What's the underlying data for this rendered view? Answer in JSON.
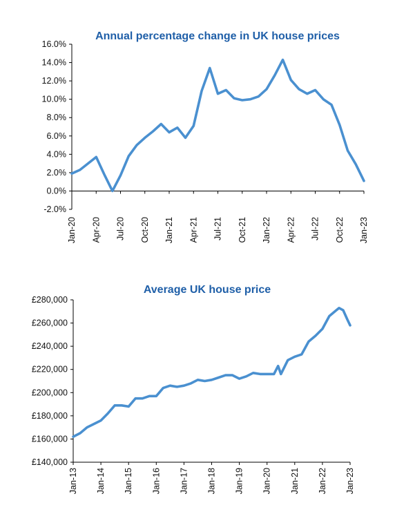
{
  "chart_data": [
    {
      "type": "line",
      "title": "Annual percentage change in UK house prices",
      "xlabel": "",
      "ylabel": "",
      "ylim": [
        -2,
        16
      ],
      "y_ticks": [
        "16.0%",
        "14.0%",
        "12.0%",
        "10.0%",
        "8.0%",
        "6.0%",
        "4.0%",
        "2.0%",
        "0.0%",
        "-2.0%"
      ],
      "x_ticks": [
        "Jan-20",
        "Apr-20",
        "Jul-20",
        "Oct-20",
        "Jan-21",
        "Apr-21",
        "Jul-21",
        "Oct-21",
        "Jan-22",
        "Apr-22",
        "Jul-22",
        "Oct-22",
        "Jan-23"
      ],
      "grid": false,
      "series": [
        {
          "color": "#4a90d0",
          "x": [
            "Jan-20",
            "Feb-20",
            "Mar-20",
            "Apr-20",
            "May-20",
            "Jun-20",
            "Jul-20",
            "Aug-20",
            "Sep-20",
            "Oct-20",
            "Nov-20",
            "Dec-20",
            "Jan-21",
            "Feb-21",
            "Mar-21",
            "Apr-21",
            "May-21",
            "Jun-21",
            "Jul-21",
            "Aug-21",
            "Sep-21",
            "Oct-21",
            "Nov-21",
            "Dec-21",
            "Jan-22",
            "Feb-22",
            "Mar-22",
            "Apr-22",
            "May-22",
            "Jun-22",
            "Jul-22",
            "Aug-22",
            "Sep-22",
            "Oct-22",
            "Nov-22",
            "Dec-22",
            "Jan-23"
          ],
          "values": [
            1.9,
            2.3,
            3.0,
            3.7,
            1.8,
            0.0,
            1.7,
            3.8,
            5.0,
            5.8,
            6.5,
            7.3,
            6.4,
            6.9,
            5.8,
            7.1,
            10.9,
            13.4,
            10.6,
            11.0,
            10.1,
            9.9,
            10.0,
            10.3,
            11.1,
            12.6,
            14.3,
            12.1,
            11.1,
            10.6,
            11.0,
            10.0,
            9.4,
            7.2,
            4.4,
            2.9,
            1.1
          ]
        }
      ]
    },
    {
      "type": "line",
      "title": "Average UK house price",
      "xlabel": "",
      "ylabel": "",
      "ylim": [
        140000,
        280000
      ],
      "y_ticks": [
        "£280,000",
        "£260,000",
        "£240,000",
        "£220,000",
        "£200,000",
        "£180,000",
        "£160,000",
        "£140,000"
      ],
      "x_ticks": [
        "Jan-13",
        "Jan-14",
        "Jan-15",
        "Jan-16",
        "Jan-17",
        "Jan-18",
        "Jan-19",
        "Jan-20",
        "Jan-21",
        "Jan-22",
        "Jan-23"
      ],
      "grid": false,
      "series": [
        {
          "color": "#4a90d0",
          "x": [
            2013.0,
            2013.25,
            2013.5,
            2013.75,
            2014.0,
            2014.25,
            2014.5,
            2014.75,
            2015.0,
            2015.25,
            2015.5,
            2015.75,
            2016.0,
            2016.25,
            2016.5,
            2016.75,
            2017.0,
            2017.25,
            2017.5,
            2017.75,
            2018.0,
            2018.25,
            2018.5,
            2018.75,
            2019.0,
            2019.25,
            2019.5,
            2019.75,
            2020.0,
            2020.25,
            2020.4,
            2020.5,
            2020.75,
            2021.0,
            2021.25,
            2021.5,
            2021.75,
            2022.0,
            2022.25,
            2022.5,
            2022.6,
            2022.75,
            2022.9,
            2023.0
          ],
          "values": [
            162000,
            165000,
            170000,
            173000,
            176000,
            182000,
            189000,
            189000,
            188000,
            195000,
            195000,
            197000,
            197000,
            204000,
            206000,
            205000,
            206000,
            208000,
            211000,
            210000,
            211000,
            213000,
            215000,
            215000,
            212000,
            214000,
            217000,
            216000,
            216000,
            216000,
            223000,
            216000,
            228000,
            231000,
            233000,
            244000,
            249000,
            255000,
            266000,
            271000,
            273000,
            271000,
            263000,
            258000
          ]
        }
      ]
    }
  ]
}
